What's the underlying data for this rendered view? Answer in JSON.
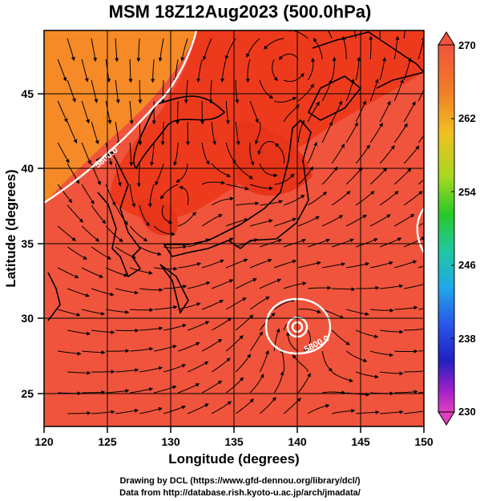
{
  "title": "MSM 18Z12Aug2023 (500.0hPa)",
  "map": {
    "x_axis_title": "Longitude (degrees)",
    "y_axis_title": "Latitude  (degrees)",
    "lon_ticks": [
      "120",
      "125",
      "130",
      "135",
      "140",
      "145",
      "150"
    ],
    "lat_ticks": [
      "25",
      "30",
      "35",
      "40",
      "45"
    ],
    "contour_labels": [
      "5800.0",
      "5800.0"
    ]
  },
  "colorbar": {
    "labels": [
      "270",
      "262",
      "254",
      "246",
      "238",
      "230"
    ]
  },
  "colors": {
    "warm_fill": "#f0543c",
    "hot_fill": "#ee3a1c",
    "orange_fill": "#f58a26",
    "contour": "#ffffff"
  },
  "credits": {
    "line1": "Drawing by DCL (https://www.gfd-dennou.org/library/dcl/)",
    "line2": "Data from http://database.rish.kyoto-u.ac.jp/arch/jmadata/"
  }
}
